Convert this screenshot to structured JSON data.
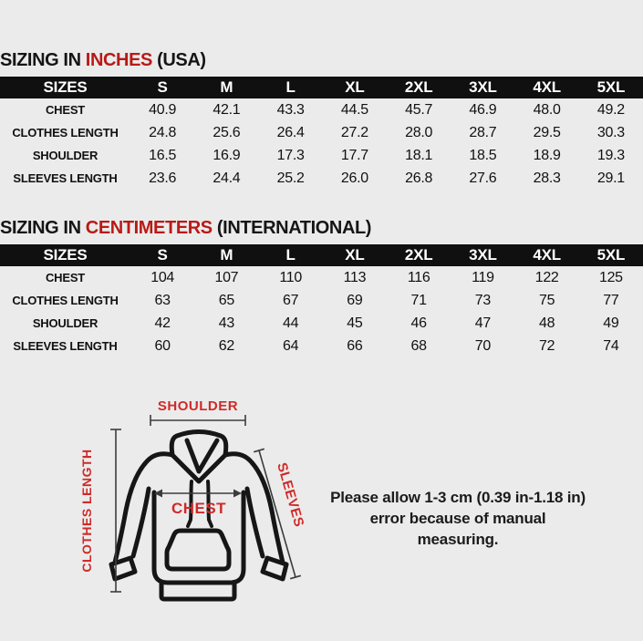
{
  "colors": {
    "background": "#ebebeb",
    "header_bg": "#101010",
    "header_text": "#ffffff",
    "accent_red": "#b91a17",
    "label_red": "#cf2a28"
  },
  "inches": {
    "title_prefix": "SIZING IN ",
    "title_accent": "INCHES",
    "title_suffix": " (USA)",
    "table": {
      "headers": [
        "SIZES",
        "S",
        "M",
        "L",
        "XL",
        "2XL",
        "3XL",
        "4XL",
        "5XL"
      ],
      "rows": [
        {
          "label": "CHEST",
          "values": [
            "40.9",
            "42.1",
            "43.3",
            "44.5",
            "45.7",
            "46.9",
            "48.0",
            "49.2"
          ]
        },
        {
          "label": "CLOTHES LENGTH",
          "values": [
            "24.8",
            "25.6",
            "26.4",
            "27.2",
            "28.0",
            "28.7",
            "29.5",
            "30.3"
          ]
        },
        {
          "label": "SHOULDER",
          "values": [
            "16.5",
            "16.9",
            "17.3",
            "17.7",
            "18.1",
            "18.5",
            "18.9",
            "19.3"
          ]
        },
        {
          "label": "SLEEVES LENGTH",
          "values": [
            "23.6",
            "24.4",
            "25.2",
            "26.0",
            "26.8",
            "27.6",
            "28.3",
            "29.1"
          ]
        }
      ]
    }
  },
  "centimeters": {
    "title_prefix": "SIZING IN ",
    "title_accent": "CENTIMETERS",
    "title_suffix": " (INTERNATIONAL)",
    "table": {
      "headers": [
        "SIZES",
        "S",
        "M",
        "L",
        "XL",
        "2XL",
        "3XL",
        "4XL",
        "5XL"
      ],
      "rows": [
        {
          "label": "CHEST",
          "values": [
            "104",
            "107",
            "110",
            "113",
            "116",
            "119",
            "122",
            "125"
          ]
        },
        {
          "label": "CLOTHES LENGTH",
          "values": [
            "63",
            "65",
            "67",
            "69",
            "71",
            "73",
            "75",
            "77"
          ]
        },
        {
          "label": "SHOULDER",
          "values": [
            "42",
            "43",
            "44",
            "45",
            "46",
            "47",
            "48",
            "49"
          ]
        },
        {
          "label": "SLEEVES LENGTH",
          "values": [
            "60",
            "62",
            "64",
            "66",
            "68",
            "70",
            "72",
            "74"
          ]
        }
      ]
    }
  },
  "diagram": {
    "labels": {
      "shoulder": "SHOULDER",
      "clothes_length": "CLOTHES LENGTH",
      "chest": "CHEST",
      "sleeves": "SLEEVES"
    }
  },
  "note": {
    "line1": "Please allow 1-3 cm (0.39 in-1.18 in)",
    "line2": "error because of manual measuring."
  }
}
